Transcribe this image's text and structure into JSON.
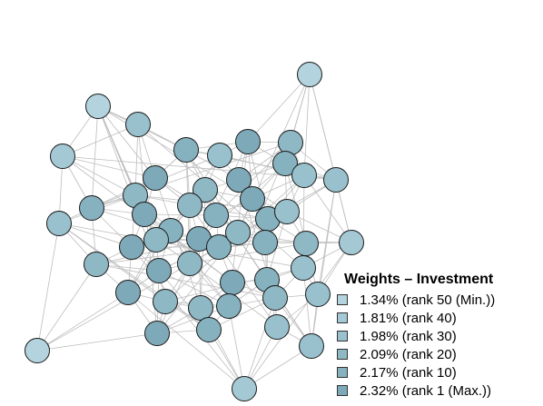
{
  "legend": {
    "title": "Weights – Investment",
    "items": [
      {
        "label": "1.34% (rank 50 (Min.))",
        "color": "#b3d3de"
      },
      {
        "label": "1.81% (rank 40)",
        "color": "#a4c9d5"
      },
      {
        "label": "1.98% (rank 30)",
        "color": "#98c0cd"
      },
      {
        "label": "2.09% (rank 20)",
        "color": "#8fb8c5"
      },
      {
        "label": "2.17% (rank 10)",
        "color": "#86b1bf"
      },
      {
        "label": "2.32% (rank 1 (Max.))",
        "color": "#7ea9b8"
      }
    ]
  },
  "colors": {
    "edge": "#bdbdbd",
    "node_stroke": "#1a1a1a"
  }
}
